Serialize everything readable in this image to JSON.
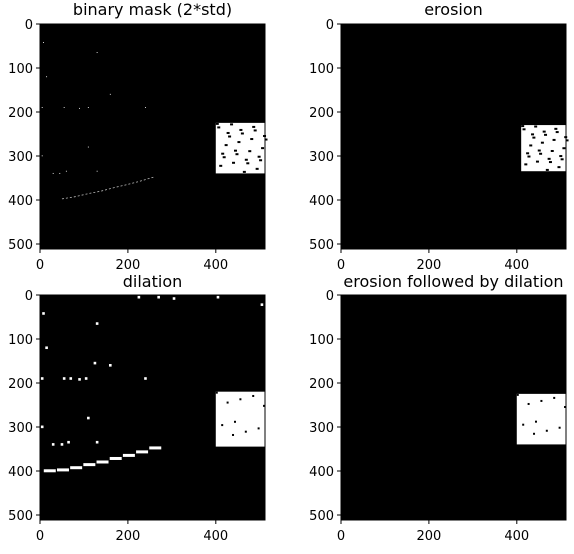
{
  "chart_data": [
    {
      "type": "heatmap",
      "title": "binary mask (2*std)",
      "xlim": [
        0,
        512
      ],
      "ylim": [
        512,
        0
      ],
      "xticks": [
        0,
        200,
        400
      ],
      "yticks": [
        0,
        100,
        200,
        300,
        400,
        500
      ],
      "grid": false,
      "colormap": "gray",
      "image_size": [
        512,
        512
      ],
      "foreground": [
        {
          "kind": "rect",
          "x": [
            400,
            512
          ],
          "y": [
            225,
            340
          ]
        },
        {
          "kind": "dot",
          "x": 8,
          "y": 42
        },
        {
          "kind": "dot",
          "x": 15,
          "y": 120
        },
        {
          "kind": "dot",
          "x": 5,
          "y": 190
        },
        {
          "kind": "dot",
          "x": 55,
          "y": 190
        },
        {
          "kind": "dot",
          "x": 90,
          "y": 192
        },
        {
          "kind": "dot",
          "x": 110,
          "y": 190
        },
        {
          "kind": "dot",
          "x": 130,
          "y": 65
        },
        {
          "kind": "dot",
          "x": 160,
          "y": 160
        },
        {
          "kind": "dot",
          "x": 240,
          "y": 190
        },
        {
          "kind": "dot",
          "x": 110,
          "y": 280
        },
        {
          "kind": "dot",
          "x": 5,
          "y": 300
        },
        {
          "kind": "dot",
          "x": 130,
          "y": 335
        },
        {
          "kind": "dot",
          "x": 30,
          "y": 340
        },
        {
          "kind": "dot",
          "x": 45,
          "y": 340
        },
        {
          "kind": "dot",
          "x": 60,
          "y": 335
        },
        {
          "kind": "arc",
          "x": [
            50,
            80,
            110,
            140,
            170,
            200,
            230,
            260
          ],
          "y": [
            398,
            393,
            386,
            380,
            372,
            365,
            357,
            348
          ]
        }
      ]
    },
    {
      "type": "heatmap",
      "title": "erosion",
      "xlim": [
        0,
        512
      ],
      "ylim": [
        512,
        0
      ],
      "xticks": [
        0,
        200,
        400
      ],
      "yticks": [
        0,
        100,
        200,
        300,
        400,
        500
      ],
      "grid": false,
      "colormap": "gray",
      "image_size": [
        512,
        512
      ],
      "foreground": [
        {
          "kind": "rect",
          "x": [
            410,
            512
          ],
          "y": [
            230,
            335
          ]
        }
      ]
    },
    {
      "type": "heatmap",
      "title": "dilation",
      "xlim": [
        0,
        512
      ],
      "ylim": [
        512,
        0
      ],
      "xticks": [
        0,
        200,
        400
      ],
      "yticks": [
        0,
        100,
        200,
        300,
        400,
        500
      ],
      "grid": false,
      "colormap": "gray",
      "image_size": [
        512,
        512
      ],
      "foreground": [
        {
          "kind": "rect",
          "x": [
            400,
            512
          ],
          "y": [
            220,
            345
          ]
        },
        {
          "kind": "dot",
          "x": 8,
          "y": 42
        },
        {
          "kind": "dot",
          "x": 15,
          "y": 120
        },
        {
          "kind": "dot",
          "x": 5,
          "y": 190
        },
        {
          "kind": "dot",
          "x": 55,
          "y": 190
        },
        {
          "kind": "dot",
          "x": 70,
          "y": 190
        },
        {
          "kind": "dot",
          "x": 90,
          "y": 192
        },
        {
          "kind": "dot",
          "x": 105,
          "y": 190
        },
        {
          "kind": "dot",
          "x": 130,
          "y": 65
        },
        {
          "kind": "dot",
          "x": 125,
          "y": 155
        },
        {
          "kind": "dot",
          "x": 160,
          "y": 160
        },
        {
          "kind": "dot",
          "x": 240,
          "y": 190
        },
        {
          "kind": "dot",
          "x": 110,
          "y": 280
        },
        {
          "kind": "dot",
          "x": 5,
          "y": 300
        },
        {
          "kind": "dot",
          "x": 130,
          "y": 335
        },
        {
          "kind": "dot",
          "x": 30,
          "y": 340
        },
        {
          "kind": "dot",
          "x": 50,
          "y": 340
        },
        {
          "kind": "dot",
          "x": 65,
          "y": 335
        },
        {
          "kind": "dot",
          "x": 225,
          "y": 5
        },
        {
          "kind": "dot",
          "x": 270,
          "y": 5
        },
        {
          "kind": "dot",
          "x": 305,
          "y": 8
        },
        {
          "kind": "dot",
          "x": 405,
          "y": 5
        },
        {
          "kind": "dot",
          "x": 505,
          "y": 22
        },
        {
          "kind": "arc",
          "x": [
            20,
            50,
            80,
            110,
            140,
            170,
            200,
            230,
            260
          ],
          "y": [
            400,
            398,
            393,
            386,
            380,
            372,
            365,
            357,
            348
          ]
        }
      ]
    },
    {
      "type": "heatmap",
      "title": "erosion followed by dilation",
      "xlim": [
        0,
        512
      ],
      "ylim": [
        512,
        0
      ],
      "xticks": [
        0,
        200,
        400
      ],
      "yticks": [
        0,
        100,
        200,
        300,
        400,
        500
      ],
      "grid": false,
      "colormap": "gray",
      "image_size": [
        512,
        512
      ],
      "foreground": [
        {
          "kind": "rect",
          "x": [
            400,
            512
          ],
          "y": [
            225,
            340
          ]
        }
      ]
    }
  ]
}
